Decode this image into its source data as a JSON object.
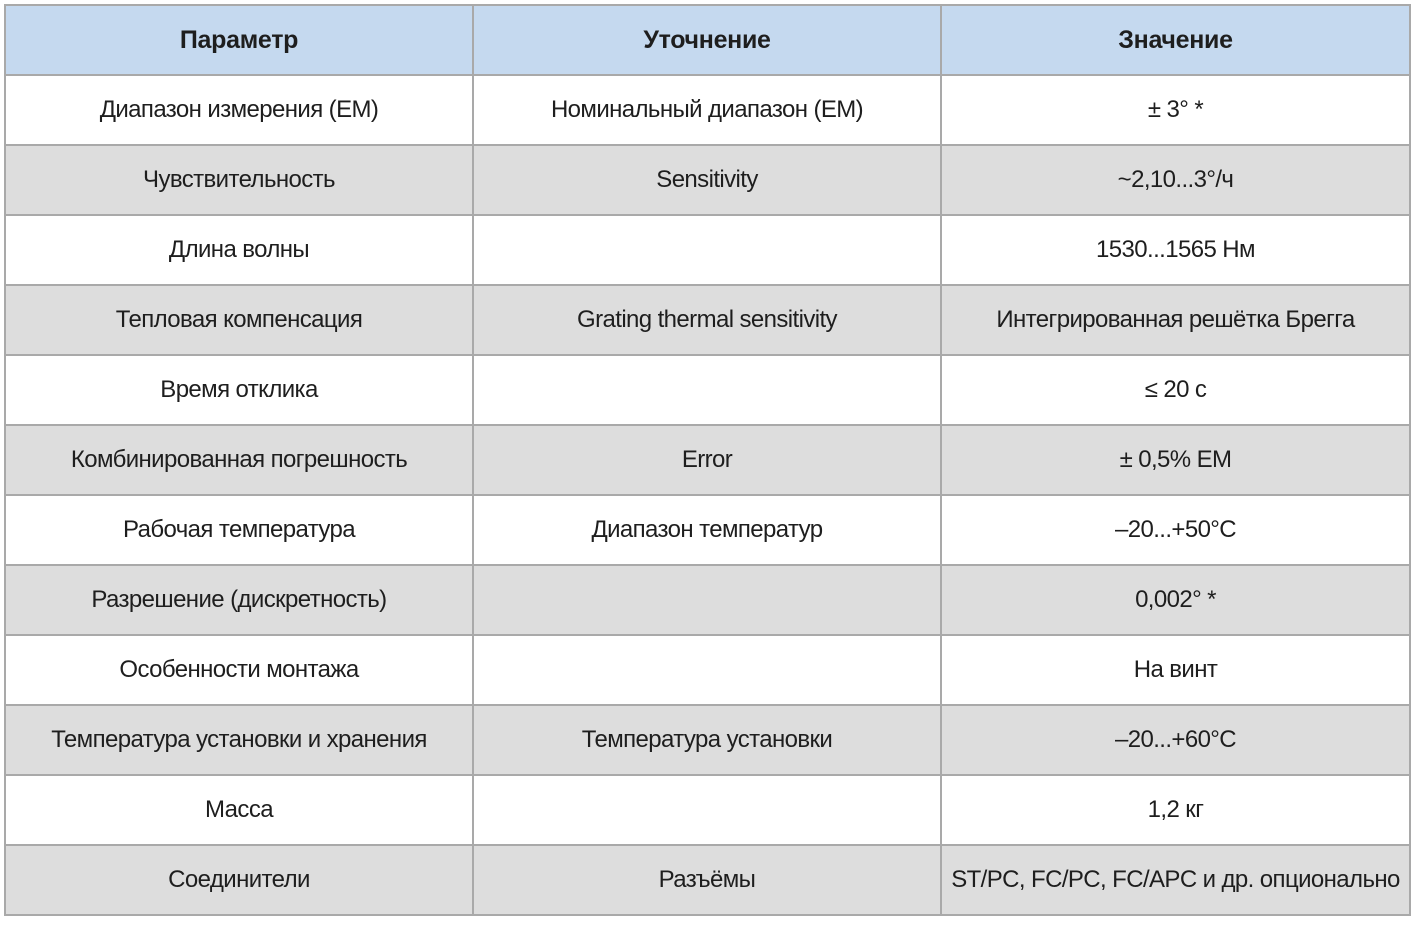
{
  "table": {
    "headers": [
      "Параметр",
      "Уточнение",
      "Значение"
    ],
    "rows": [
      [
        "Диапазон измерения (ЕМ)",
        "Номинальный диапазон (ЕМ)",
        "± 3° *"
      ],
      [
        "Чувствительность",
        "Sensitivity",
        "~2,10...3°/ч"
      ],
      [
        "Длина волны",
        "",
        "1530...1565 Нм"
      ],
      [
        "Тепловая компенсация",
        "Grating thermal sensitivity",
        "Интегрированная решётка Брегга"
      ],
      [
        "Время отклика",
        "",
        "≤ 20 с"
      ],
      [
        "Комбинированная погрешность",
        "Error",
        "± 0,5% ЕМ"
      ],
      [
        "Рабочая температура",
        "Диапазон температур",
        "–20...+50°С"
      ],
      [
        "Разрешение (дискретность)",
        "",
        "0,002° *"
      ],
      [
        "Особенности монтажа",
        "",
        "На винт"
      ],
      [
        "Температура установки и хранения",
        "Температура установки",
        "–20...+60°С"
      ],
      [
        "Масса",
        "",
        "1,2 кг"
      ],
      [
        "Соединители",
        "Разъёмы",
        "ST/PC, FC/PC, FC/APC и др. опционально"
      ]
    ]
  },
  "colors": {
    "header_background": "#c5d9ef",
    "stripe_background": "#dddddd",
    "border": "#a9a9a9"
  }
}
